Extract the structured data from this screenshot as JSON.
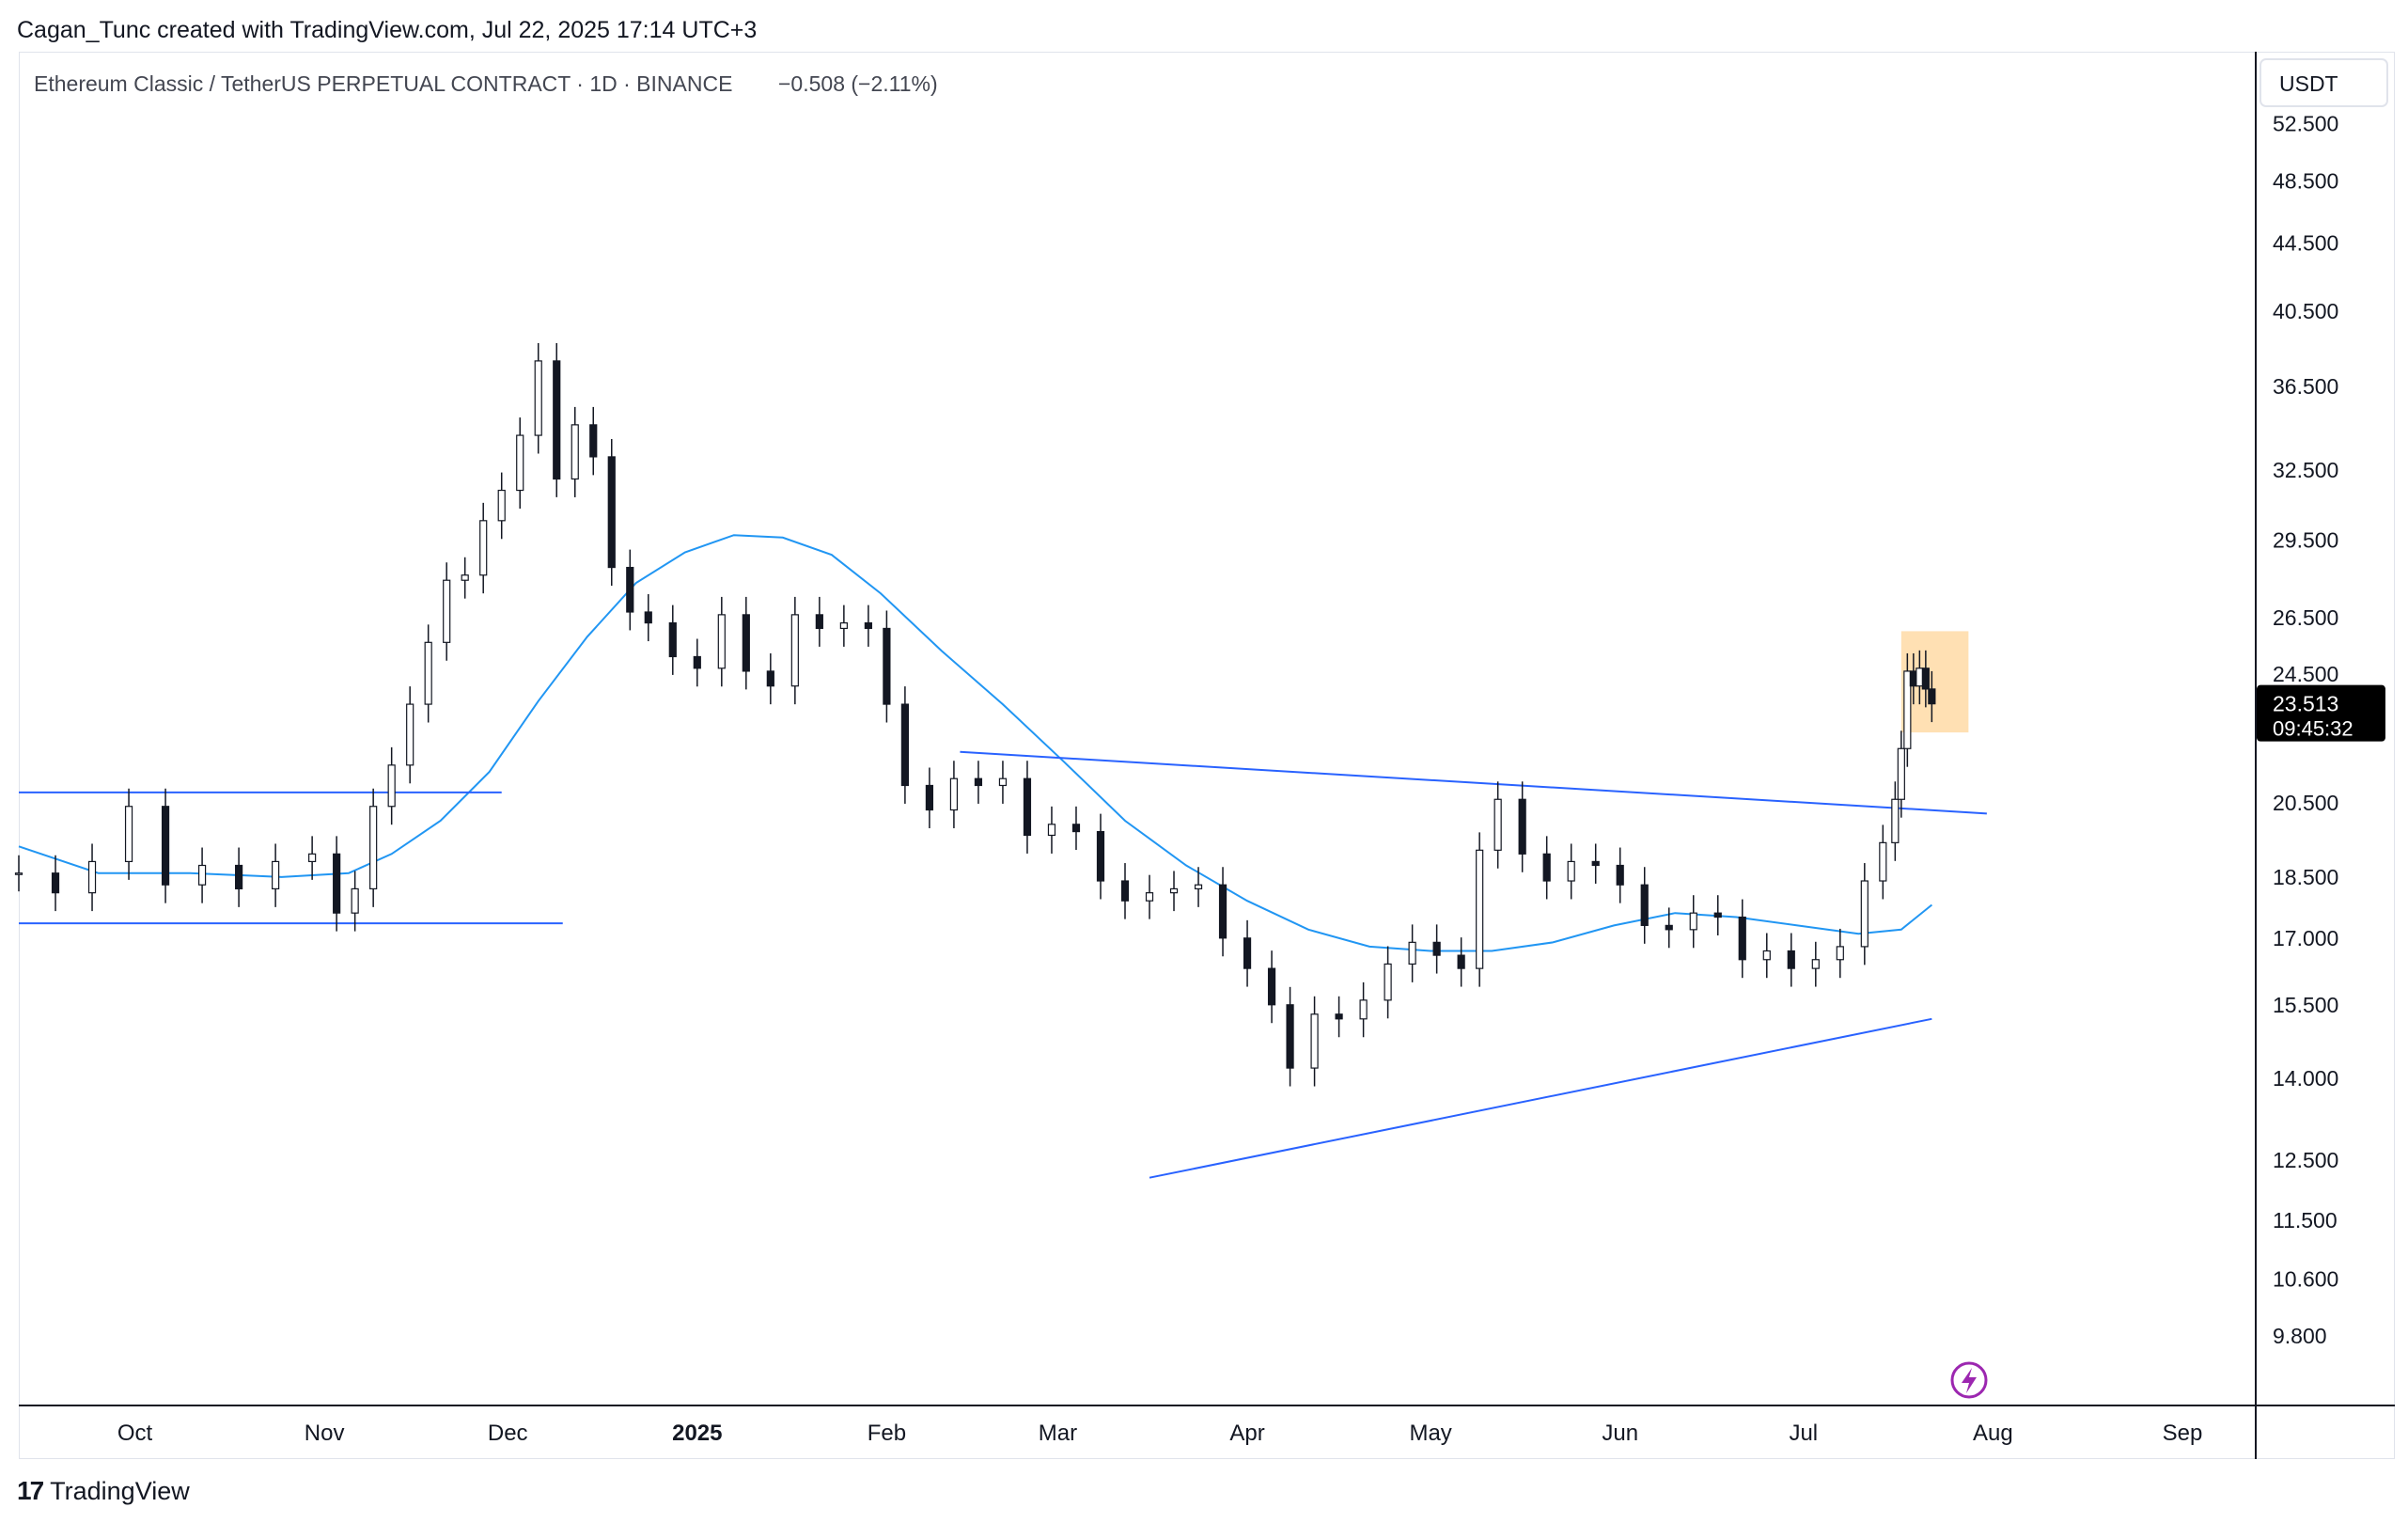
{
  "header": {
    "credit": "Cagan_Tunc created with TradingView.com, Jul 22, 2025 17:14 UTC+3"
  },
  "footer": {
    "brand": "TradingView"
  },
  "chart_data": {
    "type": "candlestick",
    "symbol_line": "Ethereum Classic / TetherUS PERPETUAL CONTRACT · 1D · BINANCE",
    "change_line": "−0.508 (−2.11%)",
    "currency": "USDT",
    "scale": "log",
    "ylim": [
      8.9,
      58
    ],
    "y_ticks": [
      "52.500",
      "48.500",
      "44.500",
      "40.500",
      "36.500",
      "32.500",
      "29.500",
      "26.500",
      "24.500",
      "20.500",
      "18.500",
      "17.000",
      "15.500",
      "14.000",
      "12.500",
      "11.500",
      "10.600",
      "9.800"
    ],
    "x_labels": [
      {
        "label": "Oct",
        "date": "2024-10-01"
      },
      {
        "label": "Nov",
        "date": "2024-11-01"
      },
      {
        "label": "Dec",
        "date": "2024-12-01"
      },
      {
        "label": "2025",
        "date": "2025-01-01",
        "bold": true
      },
      {
        "label": "Feb",
        "date": "2025-02-01"
      },
      {
        "label": "Mar",
        "date": "2025-03-01"
      },
      {
        "label": "Apr",
        "date": "2025-04-01"
      },
      {
        "label": "May",
        "date": "2025-05-01"
      },
      {
        "label": "Jun",
        "date": "2025-06-01"
      },
      {
        "label": "Jul",
        "date": "2025-07-01"
      },
      {
        "label": "Aug",
        "date": "2025-08-01"
      },
      {
        "label": "Sep",
        "date": "2025-09-01"
      }
    ],
    "x_range": [
      "2024-09-12",
      "2025-09-13"
    ],
    "last_price": {
      "value": 23.513,
      "label": "23.513",
      "countdown": "09:45:32"
    },
    "close_series": [
      {
        "date": "2024-09-12",
        "close": 18.6
      },
      {
        "date": "2024-09-18",
        "close": 18.1
      },
      {
        "date": "2024-09-24",
        "close": 18.9
      },
      {
        "date": "2024-09-30",
        "close": 20.4
      },
      {
        "date": "2024-10-06",
        "close": 18.3
      },
      {
        "date": "2024-10-12",
        "close": 18.8
      },
      {
        "date": "2024-10-18",
        "close": 18.2
      },
      {
        "date": "2024-10-24",
        "close": 18.9
      },
      {
        "date": "2024-10-30",
        "close": 19.1
      },
      {
        "date": "2024-11-03",
        "close": 17.6
      },
      {
        "date": "2024-11-06",
        "close": 18.2
      },
      {
        "date": "2024-11-09",
        "close": 20.4
      },
      {
        "date": "2024-11-12",
        "close": 21.6
      },
      {
        "date": "2024-11-15",
        "close": 23.5
      },
      {
        "date": "2024-11-18",
        "close": 25.6
      },
      {
        "date": "2024-11-21",
        "close": 27.9
      },
      {
        "date": "2024-11-24",
        "close": 28.1
      },
      {
        "date": "2024-11-27",
        "close": 30.3
      },
      {
        "date": "2024-11-30",
        "close": 31.6
      },
      {
        "date": "2024-12-03",
        "close": 34.1
      },
      {
        "date": "2024-12-06",
        "close": 37.8
      },
      {
        "date": "2024-12-09",
        "close": 32.1
      },
      {
        "date": "2024-12-12",
        "close": 34.6
      },
      {
        "date": "2024-12-15",
        "close": 33.1
      },
      {
        "date": "2024-12-18",
        "close": 28.4
      },
      {
        "date": "2024-12-21",
        "close": 26.7
      },
      {
        "date": "2024-12-24",
        "close": 26.3
      },
      {
        "date": "2024-12-28",
        "close": 25.1
      },
      {
        "date": "2025-01-01",
        "close": 24.7
      },
      {
        "date": "2025-01-05",
        "close": 26.6
      },
      {
        "date": "2025-01-09",
        "close": 24.6
      },
      {
        "date": "2025-01-13",
        "close": 24.1
      },
      {
        "date": "2025-01-17",
        "close": 26.6
      },
      {
        "date": "2025-01-21",
        "close": 26.1
      },
      {
        "date": "2025-01-25",
        "close": 26.3
      },
      {
        "date": "2025-01-29",
        "close": 26.1
      },
      {
        "date": "2025-02-01",
        "close": 23.5
      },
      {
        "date": "2025-02-04",
        "close": 21.0
      },
      {
        "date": "2025-02-08",
        "close": 20.3
      },
      {
        "date": "2025-02-12",
        "close": 21.2
      },
      {
        "date": "2025-02-16",
        "close": 21.0
      },
      {
        "date": "2025-02-20",
        "close": 21.2
      },
      {
        "date": "2025-02-24",
        "close": 19.6
      },
      {
        "date": "2025-02-28",
        "close": 19.9
      },
      {
        "date": "2025-03-04",
        "close": 19.7
      },
      {
        "date": "2025-03-08",
        "close": 18.4
      },
      {
        "date": "2025-03-12",
        "close": 17.9
      },
      {
        "date": "2025-03-16",
        "close": 18.1
      },
      {
        "date": "2025-03-20",
        "close": 18.2
      },
      {
        "date": "2025-03-24",
        "close": 18.3
      },
      {
        "date": "2025-03-28",
        "close": 17.0
      },
      {
        "date": "2025-04-01",
        "close": 16.3
      },
      {
        "date": "2025-04-05",
        "close": 15.5
      },
      {
        "date": "2025-04-08",
        "close": 14.2
      },
      {
        "date": "2025-04-12",
        "close": 15.3
      },
      {
        "date": "2025-04-16",
        "close": 15.2
      },
      {
        "date": "2025-04-20",
        "close": 15.6
      },
      {
        "date": "2025-04-24",
        "close": 16.4
      },
      {
        "date": "2025-04-28",
        "close": 16.9
      },
      {
        "date": "2025-05-02",
        "close": 16.6
      },
      {
        "date": "2025-05-06",
        "close": 16.3
      },
      {
        "date": "2025-05-09",
        "close": 19.2
      },
      {
        "date": "2025-05-12",
        "close": 20.6
      },
      {
        "date": "2025-05-16",
        "close": 19.1
      },
      {
        "date": "2025-05-20",
        "close": 18.4
      },
      {
        "date": "2025-05-24",
        "close": 18.9
      },
      {
        "date": "2025-05-28",
        "close": 18.8
      },
      {
        "date": "2025-06-01",
        "close": 18.3
      },
      {
        "date": "2025-06-05",
        "close": 17.3
      },
      {
        "date": "2025-06-09",
        "close": 17.2
      },
      {
        "date": "2025-06-13",
        "close": 17.6
      },
      {
        "date": "2025-06-17",
        "close": 17.5
      },
      {
        "date": "2025-06-21",
        "close": 16.5
      },
      {
        "date": "2025-06-25",
        "close": 16.7
      },
      {
        "date": "2025-06-29",
        "close": 16.3
      },
      {
        "date": "2025-07-03",
        "close": 16.5
      },
      {
        "date": "2025-07-07",
        "close": 16.8
      },
      {
        "date": "2025-07-11",
        "close": 18.4
      },
      {
        "date": "2025-07-14",
        "close": 19.4
      },
      {
        "date": "2025-07-16",
        "close": 20.6
      },
      {
        "date": "2025-07-17",
        "close": 22.1
      },
      {
        "date": "2025-07-18",
        "close": 24.6
      },
      {
        "date": "2025-07-19",
        "close": 24.1
      },
      {
        "date": "2025-07-20",
        "close": 24.7
      },
      {
        "date": "2025-07-21",
        "close": 24.0
      },
      {
        "date": "2025-07-22",
        "close": 23.513
      }
    ],
    "moving_average": [
      {
        "date": "2024-09-12",
        "value": 19.3
      },
      {
        "date": "2024-09-25",
        "value": 18.6
      },
      {
        "date": "2024-10-10",
        "value": 18.6
      },
      {
        "date": "2024-10-25",
        "value": 18.5
      },
      {
        "date": "2024-11-05",
        "value": 18.6
      },
      {
        "date": "2024-11-12",
        "value": 19.1
      },
      {
        "date": "2024-11-20",
        "value": 20.0
      },
      {
        "date": "2024-11-28",
        "value": 21.4
      },
      {
        "date": "2024-12-06",
        "value": 23.6
      },
      {
        "date": "2024-12-14",
        "value": 25.8
      },
      {
        "date": "2024-12-22",
        "value": 27.8
      },
      {
        "date": "2024-12-30",
        "value": 29.0
      },
      {
        "date": "2025-01-07",
        "value": 29.7
      },
      {
        "date": "2025-01-15",
        "value": 29.6
      },
      {
        "date": "2025-01-23",
        "value": 28.9
      },
      {
        "date": "2025-01-31",
        "value": 27.4
      },
      {
        "date": "2025-02-10",
        "value": 25.3
      },
      {
        "date": "2025-02-20",
        "value": 23.5
      },
      {
        "date": "2025-03-02",
        "value": 21.7
      },
      {
        "date": "2025-03-12",
        "value": 20.0
      },
      {
        "date": "2025-03-22",
        "value": 18.8
      },
      {
        "date": "2025-04-01",
        "value": 17.9
      },
      {
        "date": "2025-04-11",
        "value": 17.2
      },
      {
        "date": "2025-04-21",
        "value": 16.8
      },
      {
        "date": "2025-05-01",
        "value": 16.7
      },
      {
        "date": "2025-05-11",
        "value": 16.7
      },
      {
        "date": "2025-05-21",
        "value": 16.9
      },
      {
        "date": "2025-05-31",
        "value": 17.3
      },
      {
        "date": "2025-06-10",
        "value": 17.6
      },
      {
        "date": "2025-06-20",
        "value": 17.5
      },
      {
        "date": "2025-06-30",
        "value": 17.3
      },
      {
        "date": "2025-07-10",
        "value": 17.1
      },
      {
        "date": "2025-07-17",
        "value": 17.2
      },
      {
        "date": "2025-07-22",
        "value": 17.8
      }
    ],
    "trendlines": [
      {
        "name": "range-top",
        "from": {
          "date": "2024-09-12",
          "price": 20.8
        },
        "to": {
          "date": "2024-11-30",
          "price": 20.8
        }
      },
      {
        "name": "range-bottom",
        "from": {
          "date": "2024-09-12",
          "price": 17.35
        },
        "to": {
          "date": "2024-12-10",
          "price": 17.35
        }
      },
      {
        "name": "triangle-upper",
        "from": {
          "date": "2025-02-13",
          "price": 22.0
        },
        "to": {
          "date": "2025-07-31",
          "price": 20.2
        }
      },
      {
        "name": "triangle-lower",
        "from": {
          "date": "2025-03-16",
          "price": 12.2
        },
        "to": {
          "date": "2025-07-22",
          "price": 15.2
        }
      }
    ],
    "highlight_box": {
      "from": "2025-07-17",
      "to": "2025-07-28",
      "top": 26.0,
      "bottom": 22.6
    }
  }
}
